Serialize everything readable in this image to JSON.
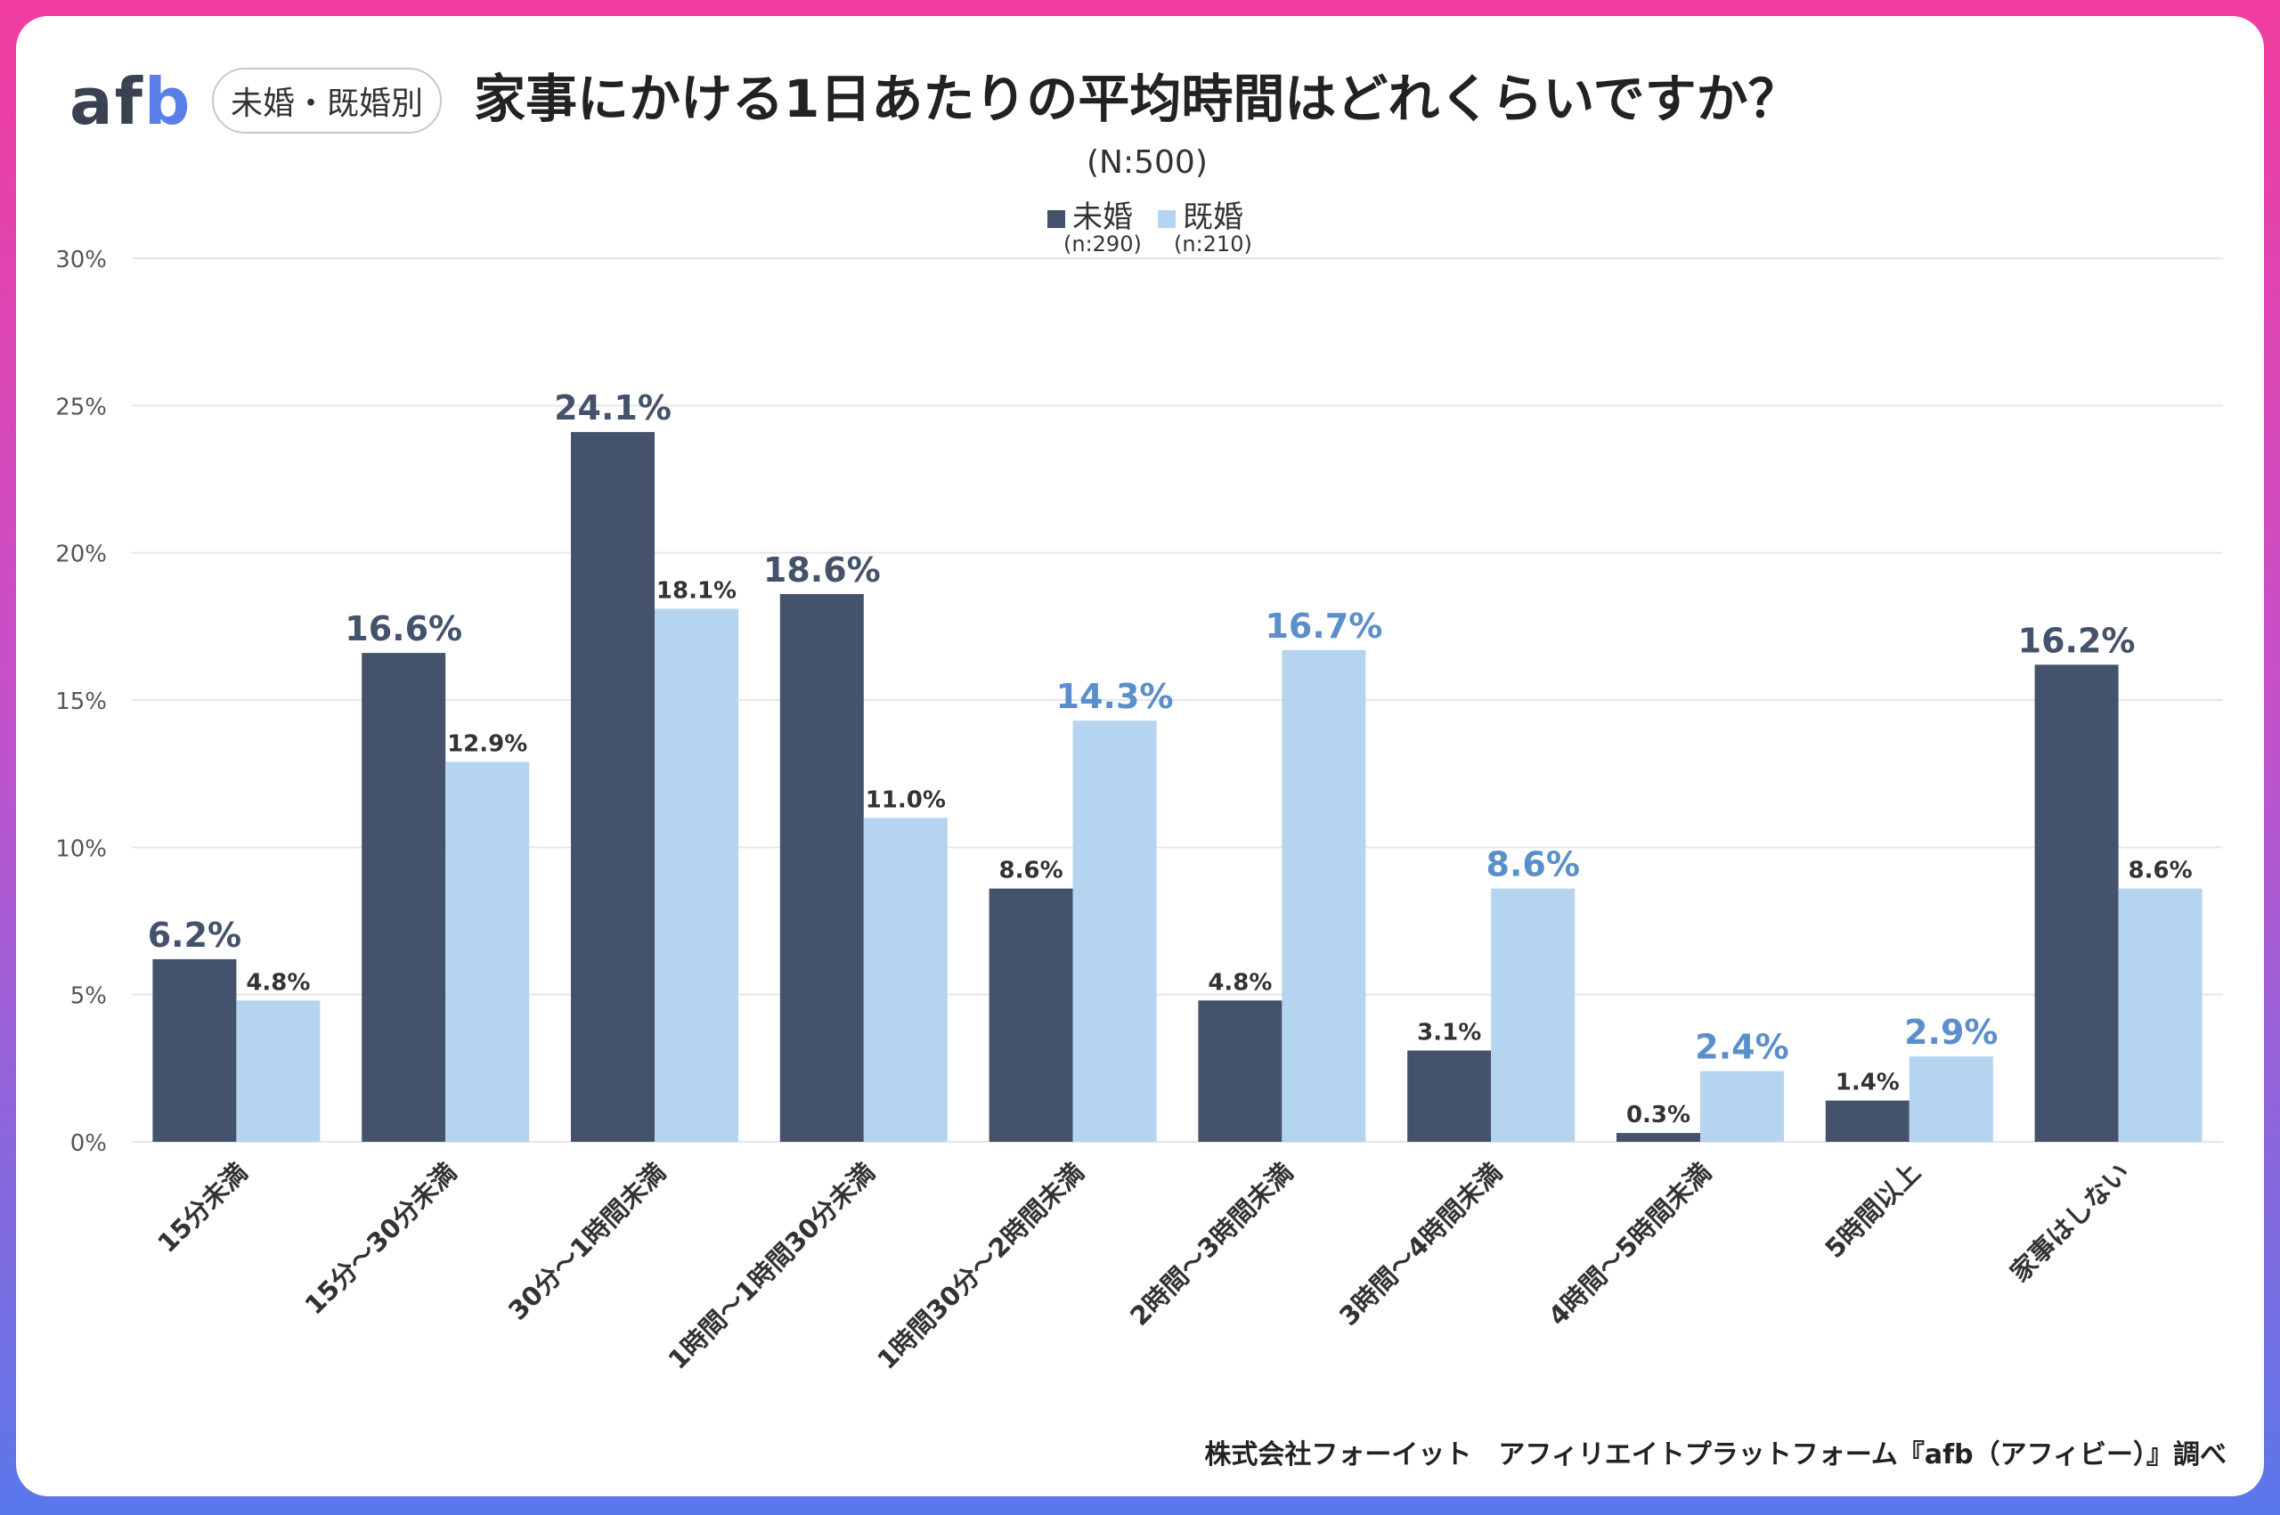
{
  "header": {
    "logo": "afb",
    "tag": "未婚・既婚別",
    "title": "家事にかける1日あたりの平均時間はどれくらいですか？",
    "sample": "(N:500)"
  },
  "legend": [
    {
      "name": "未婚",
      "sub": "(n:290)",
      "color": "#44526b"
    },
    {
      "name": "既婚",
      "sub": "(n:210)",
      "color": "#b4d4ef"
    }
  ],
  "source": "株式会社フォーイット　アフィリエイトプラットフォーム『afb（アフィビー）』調べ",
  "colors": {
    "unmarried": "#44526b",
    "married": "#b4d4ef",
    "married_highlight_label": "#5b8fcb",
    "grid": "#e6e6e6",
    "axis_text": "#555555"
  },
  "chart_data": {
    "type": "bar",
    "categories": [
      "15分未満",
      "15分～30分未満",
      "30分～1時間未満",
      "1時間～1時間30分未満",
      "1時間30分～2時間未満",
      "2時間～3時間未満",
      "3時間～4時間未満",
      "4時間～5時間未満",
      "5時間以上",
      "家事はしない"
    ],
    "series": [
      {
        "name": "未婚",
        "values": [
          6.2,
          16.6,
          24.1,
          18.6,
          8.6,
          4.8,
          3.1,
          0.3,
          1.4,
          16.2
        ],
        "highlight": [
          true,
          true,
          true,
          true,
          false,
          false,
          false,
          false,
          false,
          true
        ]
      },
      {
        "name": "既婚",
        "values": [
          4.8,
          12.9,
          18.1,
          11.0,
          14.3,
          16.7,
          8.6,
          2.4,
          2.9,
          8.6
        ],
        "highlight": [
          false,
          false,
          false,
          false,
          true,
          true,
          true,
          true,
          true,
          false
        ]
      }
    ],
    "ylim": [
      0,
      30
    ],
    "yticks": [
      "0%",
      "5%",
      "10%",
      "15%",
      "20%",
      "25%",
      "30%"
    ],
    "grid": true,
    "legend_position": "top-center"
  }
}
